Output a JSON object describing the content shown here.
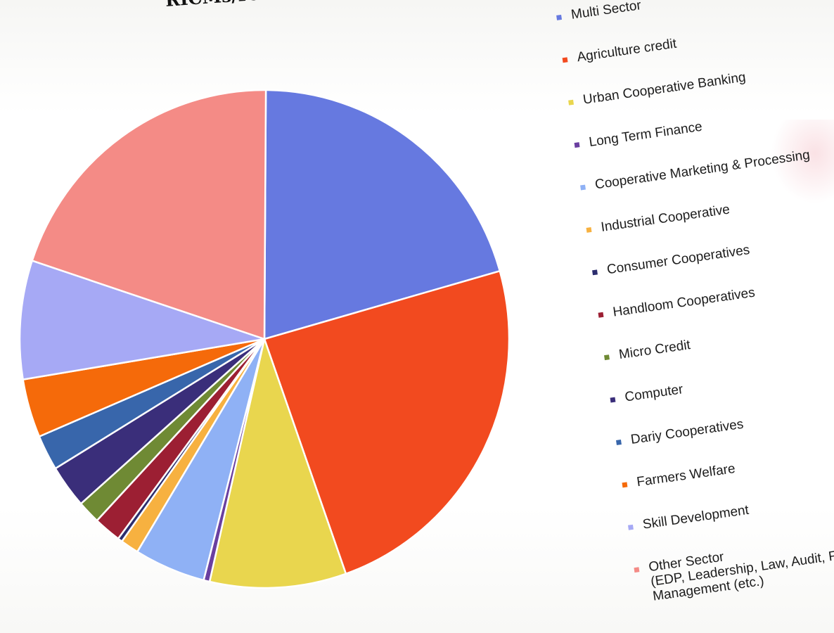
{
  "title": "RICMs/ICMs during the year",
  "chart_data": {
    "type": "pie",
    "title": "RICMs/ICMs during the year",
    "legend_position": "right",
    "unit": "share of total (estimated, %)",
    "slices": [
      {
        "label": "Multi Sector",
        "value": 20.5,
        "color": "#6679e0"
      },
      {
        "label": "Agriculture credit",
        "value": 24.0,
        "color": "#f24a1f"
      },
      {
        "label": "Urban Cooperative Banking",
        "value": 9.0,
        "color": "#e9d64e"
      },
      {
        "label": "Long Term Finance",
        "value": 0.4,
        "color": "#6a3fa0"
      },
      {
        "label": "Cooperative Marketing & Processing",
        "value": 4.7,
        "color": "#8fb1f5"
      },
      {
        "label": "Industrial Cooperative",
        "value": 1.2,
        "color": "#f7b140"
      },
      {
        "label": "Consumer Cooperatives",
        "value": 0.3,
        "color": "#2b2d6e"
      },
      {
        "label": "Handloom Cooperatives",
        "value": 1.8,
        "color": "#9c1f33"
      },
      {
        "label": "Micro Credit",
        "value": 1.5,
        "color": "#6f8a34"
      },
      {
        "label": "Computer",
        "value": 2.8,
        "color": "#3a2e7a"
      },
      {
        "label": "Dariy Cooperatives",
        "value": 2.3,
        "color": "#3866ab"
      },
      {
        "label": "Farmers Welfare",
        "value": 3.8,
        "color": "#f56a0a"
      },
      {
        "label": "Skill Development",
        "value": 7.7,
        "color": "#a6a9f5"
      },
      {
        "label": "Other Sector\n(EDP, Leadership, Law, Audit, Fishery\nManagement (etc.)",
        "value": 20.0,
        "color": "#f48b86"
      }
    ]
  }
}
